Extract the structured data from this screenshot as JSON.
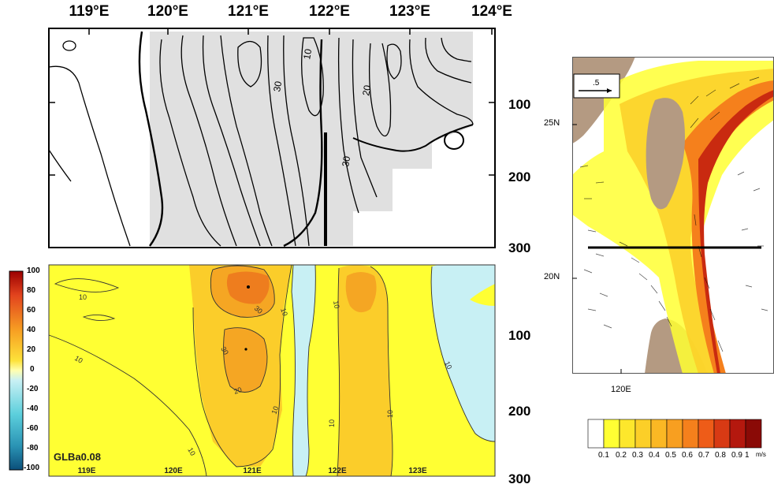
{
  "top_panel": {
    "lon_labels": [
      "119°E",
      "120°E",
      "121°E",
      "122°E",
      "123°E",
      "124°E"
    ],
    "depth_labels": [
      "100",
      "200",
      "300"
    ],
    "contour_labels": [
      "10",
      "30",
      "20",
      "30"
    ]
  },
  "bottom_panel": {
    "model_label": "GLBa0.08",
    "lon_labels": [
      "119E",
      "120E",
      "121E",
      "122E",
      "123E"
    ],
    "depth_labels": [
      "100",
      "200",
      "300"
    ],
    "colorbar_labels": [
      "100",
      "80",
      "60",
      "40",
      "20",
      "0",
      "-20",
      "-40",
      "-60",
      "-80",
      "-100"
    ],
    "contour_labels": [
      "10",
      "10",
      "30",
      "30",
      "20",
      "10",
      "10",
      "10",
      "10",
      "10",
      "10",
      "10"
    ],
    "colors": {
      "negative": "#c8f0f4",
      "positive_low": "#ffff33",
      "positive_mid": "#fbcd2a",
      "positive_high": "#f5a623",
      "max": "#ee7d1e"
    }
  },
  "map_panel": {
    "lat_labels": [
      "25N",
      "20N"
    ],
    "lon_label": "120E",
    "reference_vector_label": ".5",
    "speed_scale_labels": [
      "0.1",
      "0.2",
      "0.3",
      "0.4",
      "0.5",
      "0.6",
      "0.7",
      "0.8",
      "0.9",
      "1",
      "m/s"
    ],
    "speed_scale_colors": [
      "#ffffff",
      "#ffff33",
      "#fde72c",
      "#fccf28",
      "#fbb824",
      "#f89f20",
      "#f5801c",
      "#ee5c18",
      "#d83a14",
      "#b4180e",
      "#8a0a06"
    ],
    "colors": {
      "land": "#b49a82",
      "ocean": "#ffffff",
      "section_line": "#000000"
    }
  }
}
